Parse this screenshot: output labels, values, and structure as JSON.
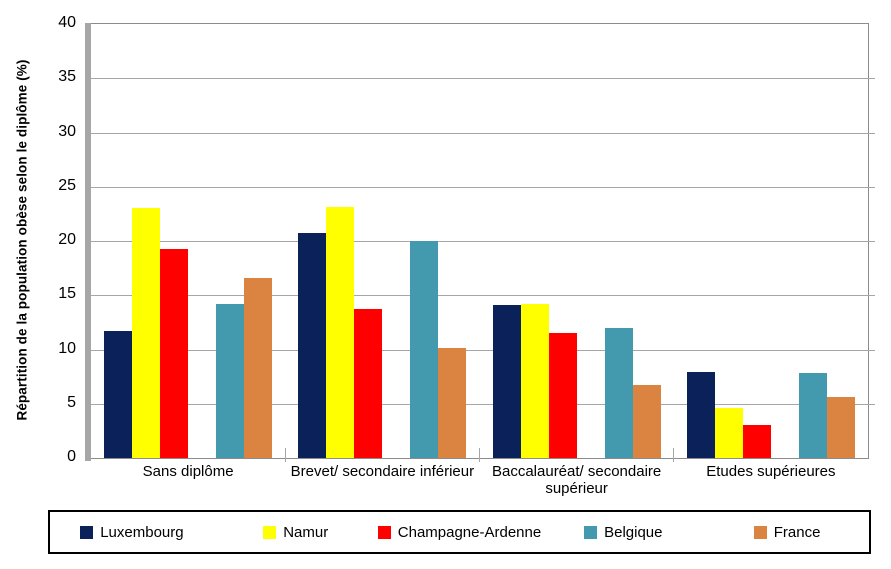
{
  "chart_data": {
    "type": "bar",
    "title": "",
    "xlabel": "",
    "ylabel": "Répartition de la population obèse selon le diplôme (%)",
    "ylim": [
      0,
      40
    ],
    "ytick_step": 5,
    "grid": true,
    "legend_position": "bottom",
    "categories": [
      "Sans diplôme",
      "Brevet/ secondaire inférieur",
      "Baccalauréat/ secondaire supérieur",
      "Etudes supérieures"
    ],
    "series": [
      {
        "name": "Luxembourg",
        "color": "#0A2259",
        "values": [
          11.7,
          20.7,
          14.1,
          7.9
        ]
      },
      {
        "name": "Namur",
        "color": "#FFFF00",
        "values": [
          23.0,
          23.1,
          14.2,
          4.6
        ]
      },
      {
        "name": "Champagne-Ardenne",
        "color": "#FF0000",
        "values": [
          19.3,
          13.7,
          11.5,
          3.0
        ]
      },
      {
        "name": "Belgique",
        "color": "#4399AE",
        "values": [
          14.2,
          20.0,
          12.0,
          7.8
        ]
      },
      {
        "name": "France",
        "color": "#DB8441",
        "values": [
          16.6,
          10.1,
          6.7,
          5.6
        ]
      }
    ],
    "cluster_gap_after_series_index": 2
  },
  "colors": {
    "gridline": "#A6A6A6",
    "axis_band": "#A6A6A6",
    "plot_border": "#8C8C8C",
    "legend_border": "#000000"
  }
}
